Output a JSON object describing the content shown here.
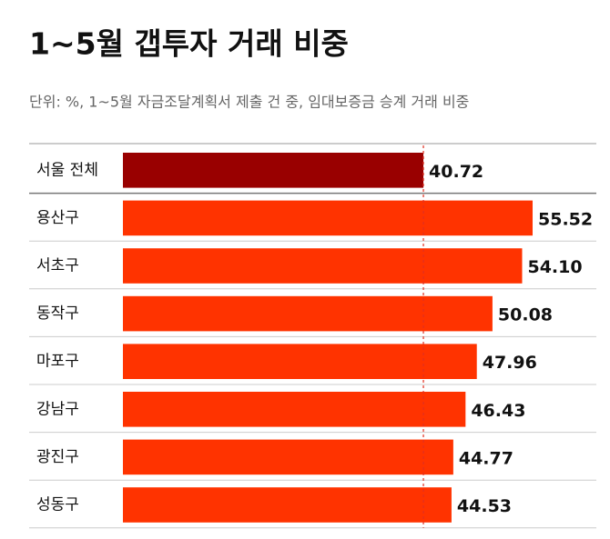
{
  "chart_data": {
    "type": "bar",
    "orientation": "horizontal",
    "title": "1~5월 갭투자 거래 비중",
    "subtitle": "단위: %, 1~5월 자금조달계획서 제출 건 중, 임대보증금 승계 거래 비중",
    "categories": [
      "서울 전체",
      "용산구",
      "서초구",
      "동작구",
      "마포구",
      "강남구",
      "광진구",
      "성동구"
    ],
    "values": [
      40.72,
      55.52,
      54.1,
      50.08,
      47.96,
      46.43,
      44.77,
      44.53
    ],
    "value_labels": [
      "40.72",
      "55.52",
      "54.10",
      "50.08",
      "47.96",
      "46.43",
      "44.77",
      "44.53"
    ],
    "colors": [
      "#990000",
      "#ff3300",
      "#ff3300",
      "#ff3300",
      "#ff3300",
      "#ff3300",
      "#ff3300",
      "#ff3300"
    ],
    "reference_line_color": "#e03020"
  }
}
